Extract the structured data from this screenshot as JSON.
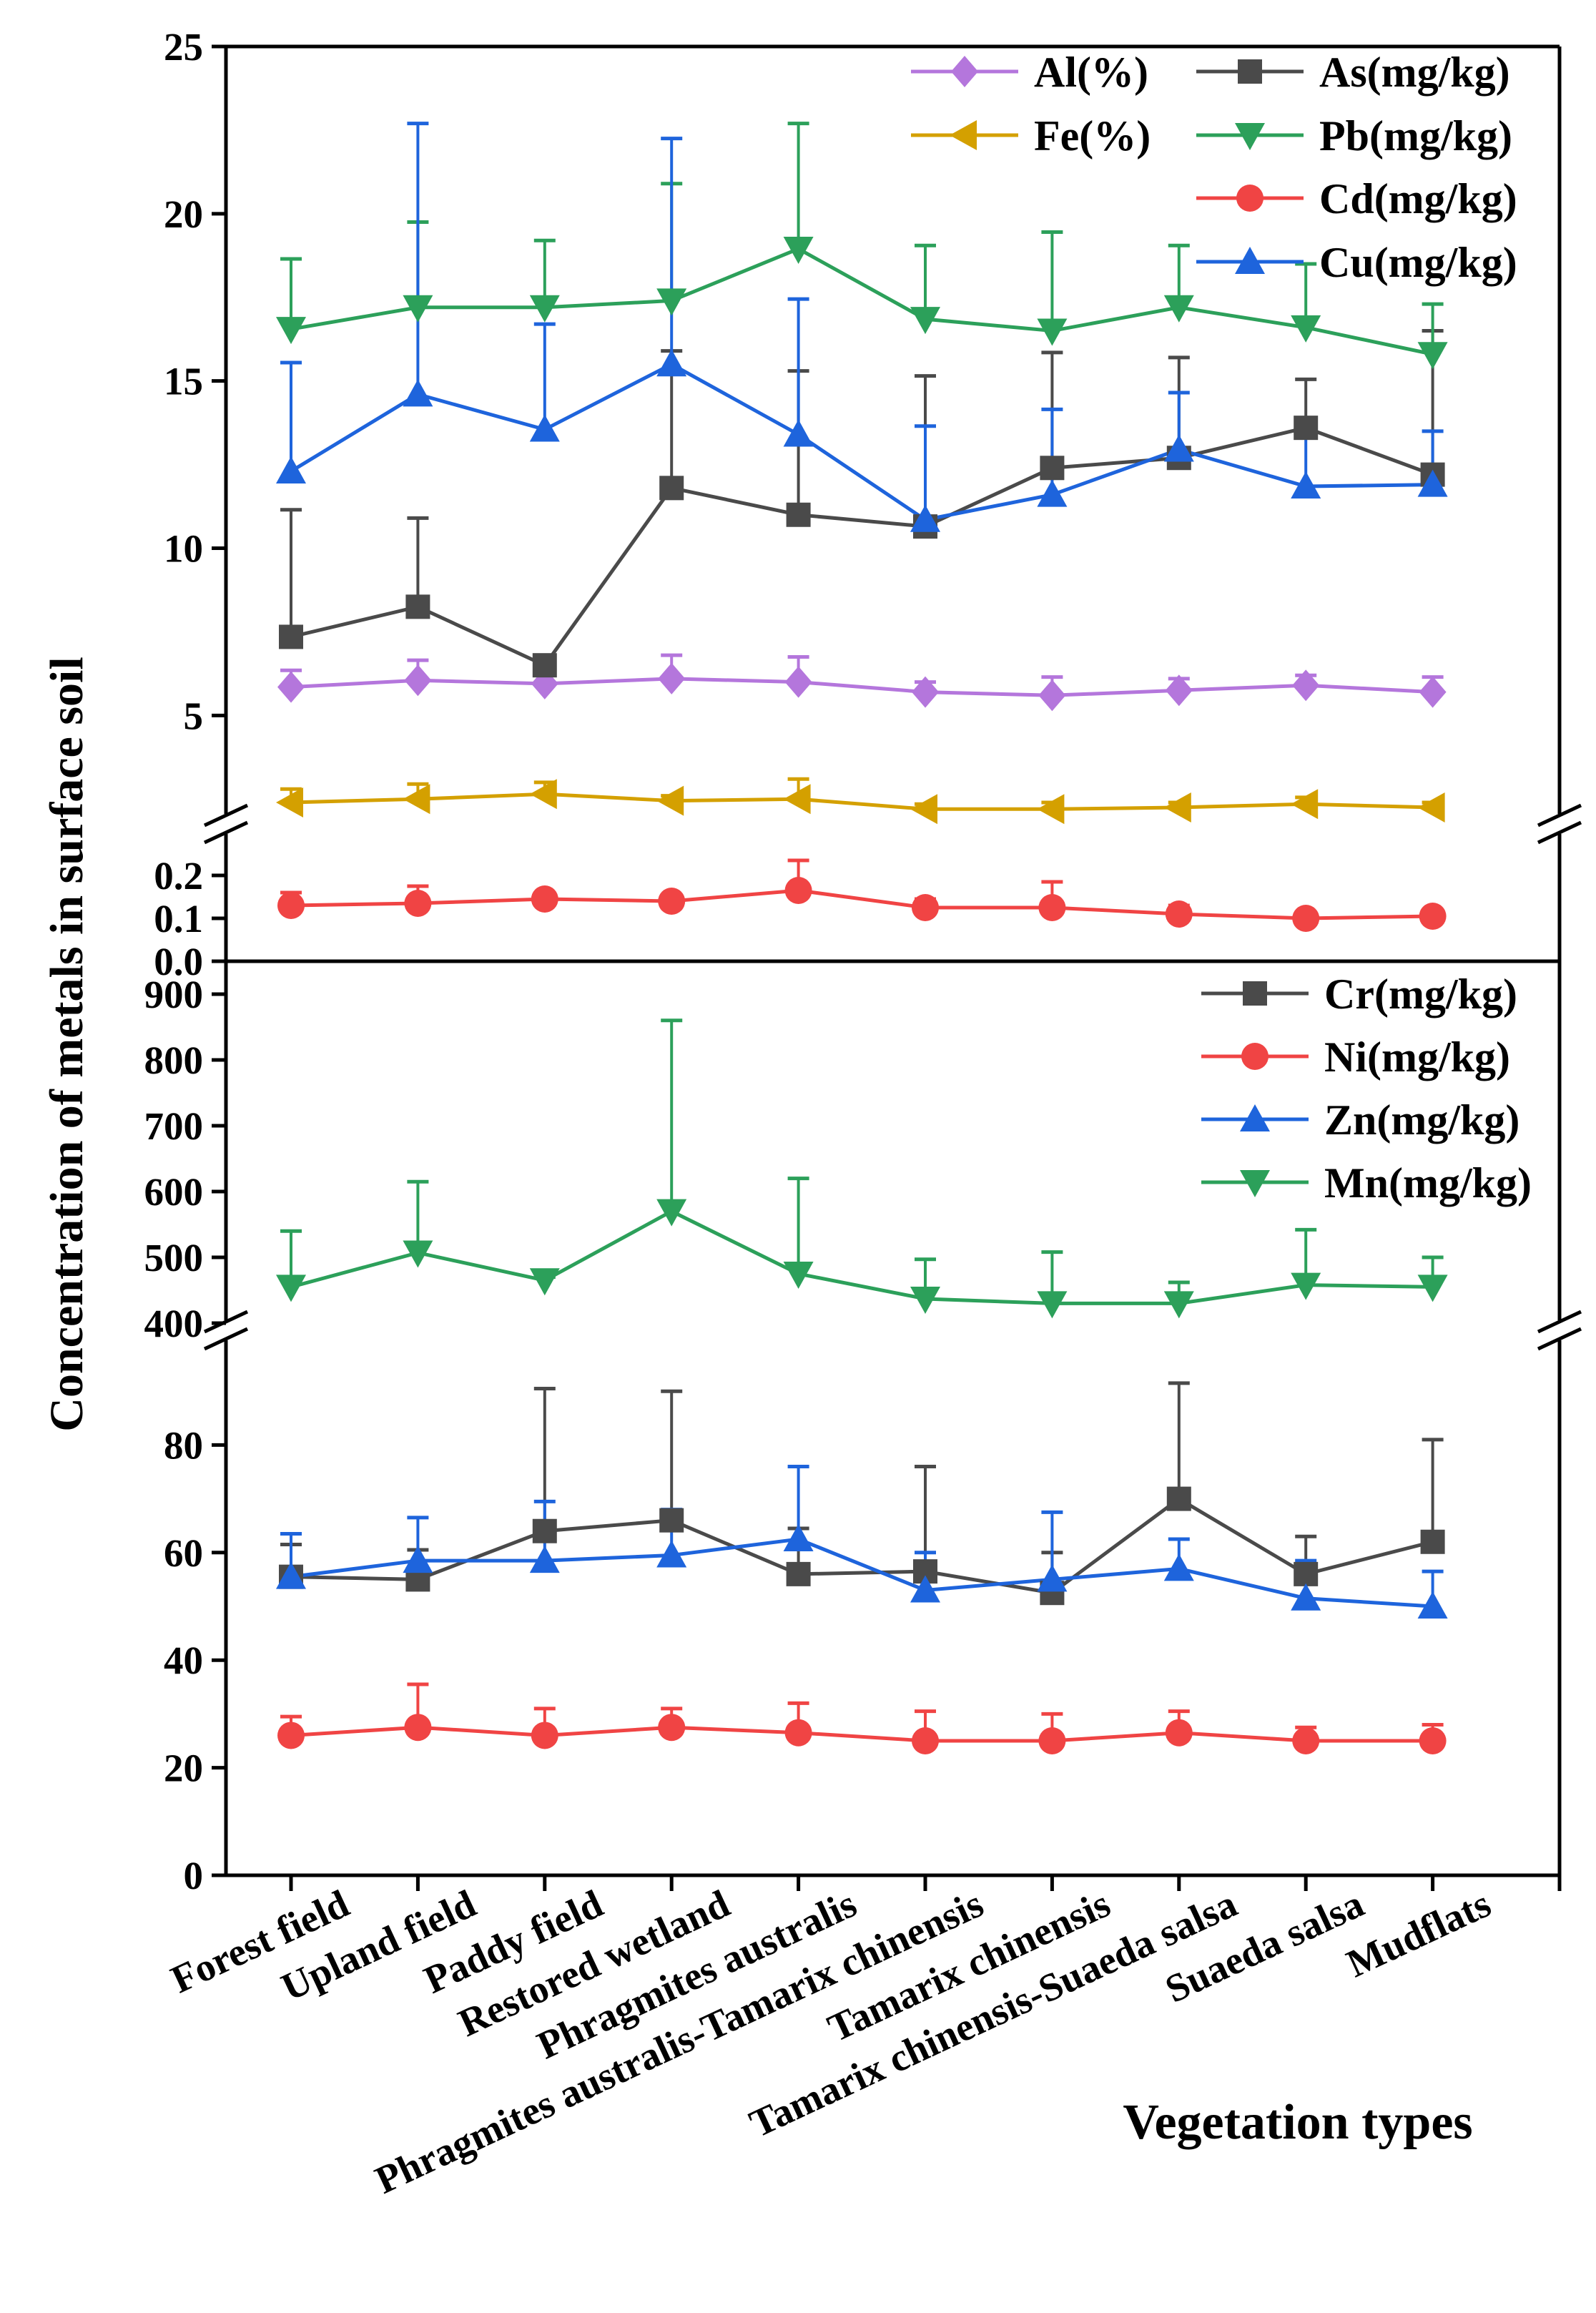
{
  "chart_data": {
    "type": "line",
    "xlabel": "Vegetation types",
    "ylabel": "Concentration of metals in surface soil",
    "categories": [
      "Forest field",
      "Upland field",
      "Paddy field",
      "Restored wetland",
      "Phragmites australis",
      "Phragmites australis-Tamarix chinensis",
      "Tamarix chinensis",
      "Tamarix chinensis-Suaeda salsa",
      "Suaeda salsa",
      "Mudflats"
    ],
    "axes": [
      {
        "id": "top-upper",
        "range": [
          1.8,
          25
        ],
        "ticks": [
          5,
          10,
          15,
          20,
          25
        ],
        "tick_labels": [
          "5",
          "10",
          "15",
          "20",
          "25"
        ]
      },
      {
        "id": "top-lower",
        "range": [
          0,
          0.3
        ],
        "ticks": [
          0,
          0.1,
          0.2
        ],
        "tick_labels": [
          "0.0",
          "0.1",
          "0.2"
        ]
      },
      {
        "id": "bottom-upper",
        "range": [
          400,
          950
        ],
        "ticks": [
          400,
          500,
          600,
          700,
          800,
          900
        ],
        "tick_labels": [
          "400",
          "500",
          "600",
          "700",
          "800",
          "900"
        ]
      },
      {
        "id": "bottom-lower",
        "range": [
          0,
          100
        ],
        "ticks": [
          0,
          20,
          40,
          60,
          80
        ],
        "tick_labels": [
          "0",
          "20",
          "40",
          "60",
          "80"
        ]
      }
    ],
    "legends": [
      {
        "placement": "top-right",
        "entries": [
          "Al(%)",
          "As(mg/kg)",
          "Fe(%)",
          "Pb(mg/kg)",
          "Cd(mg/kg)",
          "Cu(mg/kg)"
        ]
      },
      {
        "placement": "top-right of lower panel",
        "entries": [
          "Cr(mg/kg)",
          "Ni(mg/kg)",
          "Zn(mg/kg)",
          "Mn(mg/kg)"
        ]
      }
    ],
    "series": [
      {
        "name": "Al(%)",
        "axis": 0,
        "marker": "diamond",
        "color": "#b476dc",
        "values": [
          5.85,
          6.05,
          5.95,
          6.1,
          6.0,
          5.7,
          5.6,
          5.75,
          5.9,
          5.7
        ],
        "err_upper": [
          6.35,
          6.65,
          6.3,
          6.8,
          6.75,
          6.0,
          6.15,
          6.1,
          6.2,
          6.15
        ]
      },
      {
        "name": "As(mg/kg)",
        "axis": 0,
        "marker": "square",
        "color": "#4a4a4a",
        "values": [
          7.35,
          8.25,
          6.5,
          11.8,
          11.0,
          10.65,
          12.4,
          12.7,
          13.6,
          12.2
        ],
        "err_upper": [
          11.15,
          10.9,
          6.6,
          15.9,
          15.3,
          15.15,
          15.85,
          15.7,
          15.05,
          16.5
        ]
      },
      {
        "name": "Fe(%)",
        "axis": 0,
        "marker": "triangle-left",
        "color": "#d4a000",
        "values": [
          2.4,
          2.5,
          2.65,
          2.45,
          2.5,
          2.2,
          2.2,
          2.25,
          2.35,
          2.25
        ],
        "err_upper": [
          2.8,
          2.95,
          3.0,
          2.6,
          3.1,
          2.35,
          2.4,
          2.4,
          2.55,
          2.4
        ]
      },
      {
        "name": "Pb(mg/kg)",
        "axis": 0,
        "marker": "triangle-down",
        "color": "#2ca05a",
        "values": [
          16.55,
          17.2,
          17.2,
          17.4,
          18.95,
          16.85,
          16.5,
          17.2,
          16.6,
          15.8
        ],
        "err_upper": [
          18.65,
          19.75,
          19.2,
          20.9,
          22.7,
          19.05,
          19.45,
          19.05,
          18.5,
          17.3
        ]
      },
      {
        "name": "Cd(mg/kg)",
        "axis": 1,
        "marker": "circle",
        "color": "#f04444",
        "values": [
          0.13,
          0.135,
          0.145,
          0.14,
          0.165,
          0.125,
          0.125,
          0.11,
          0.1,
          0.105
        ],
        "err_upper": [
          0.16,
          0.175,
          0.15,
          0.155,
          0.235,
          0.145,
          0.185,
          0.13,
          0.105,
          0.11
        ]
      },
      {
        "name": "Cu(mg/kg)",
        "axis": 0,
        "marker": "triangle-up",
        "color": "#1e64dc",
        "values": [
          12.3,
          14.6,
          13.55,
          15.5,
          13.4,
          10.85,
          11.6,
          12.95,
          11.85,
          11.9
        ],
        "err_upper": [
          15.55,
          22.7,
          16.7,
          22.25,
          17.45,
          13.65,
          14.15,
          14.65,
          13.7,
          13.5
        ]
      },
      {
        "name": "Cr(mg/kg)",
        "axis": 3,
        "marker": "square",
        "color": "#4a4a4a",
        "values": [
          55.5,
          55,
          64,
          66,
          56,
          56.5,
          52.5,
          70,
          56,
          62
        ],
        "err_upper": [
          61.5,
          60.5,
          90.5,
          90,
          64.5,
          76,
          60,
          91.5,
          63,
          81
        ]
      },
      {
        "name": "Ni(mg/kg)",
        "axis": 3,
        "marker": "circle",
        "color": "#f04444",
        "values": [
          26,
          27.5,
          26,
          27.5,
          26.5,
          25,
          25,
          26.5,
          25,
          25
        ],
        "err_upper": [
          29.5,
          35.5,
          31,
          31,
          32,
          30.5,
          30,
          30.5,
          27.5,
          28
        ]
      },
      {
        "name": "Zn(mg/kg)",
        "axis": 3,
        "marker": "triangle-up",
        "color": "#1e64dc",
        "values": [
          55.5,
          58.5,
          58.5,
          59.5,
          62.5,
          53,
          55,
          57,
          51.5,
          50
        ],
        "err_upper": [
          63.5,
          66.5,
          69.5,
          68,
          76,
          60,
          67.5,
          62.5,
          58.5,
          56.5
        ]
      },
      {
        "name": "Mn(mg/kg)",
        "axis": 2,
        "marker": "triangle-down",
        "color": "#2ca05a",
        "values": [
          455,
          507,
          465,
          570,
          475,
          437,
          430,
          430,
          458,
          455
        ],
        "err_upper": [
          540,
          615,
          470,
          860,
          620,
          497,
          508,
          462,
          542,
          500
        ]
      }
    ]
  }
}
